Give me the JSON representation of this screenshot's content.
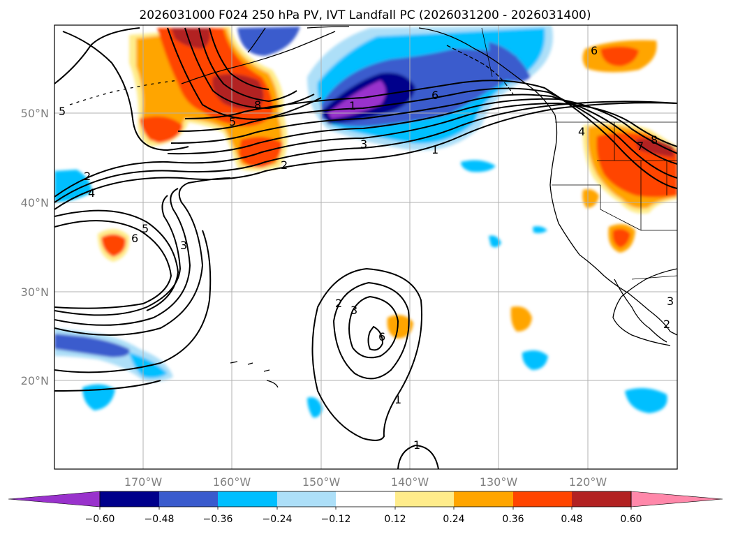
{
  "title": "2026031000 F024 250 hPa PV, IVT Landfall PC (2026031200 - 2026031400)",
  "lat_labels": [
    "50°N",
    "40°N",
    "30°N",
    "20°N"
  ],
  "lon_labels": [
    "170°W",
    "160°W",
    "150°W",
    "140°W",
    "130°W",
    "120°W"
  ],
  "colorbar": {
    "ticks": [
      "−0.60",
      "−0.48",
      "−0.36",
      "−0.24",
      "−0.12",
      "0.12",
      "0.24",
      "0.36",
      "0.48",
      "0.60"
    ],
    "colors": [
      "#9932CC",
      "#00008B",
      "#3A5BCD",
      "#00BFFF",
      "#ADDFF8",
      "#FFFFFF",
      "#FFEC8B",
      "#FFA500",
      "#FF4500",
      "#B22222",
      "#FF88AA"
    ]
  },
  "contour_labels": [
    "1",
    "2",
    "3",
    "4",
    "5",
    "6",
    "7",
    "8",
    "1",
    "2",
    "3",
    "5",
    "6",
    "8",
    "2",
    "3",
    "5",
    "6",
    "2",
    "3",
    "4",
    "1",
    "1",
    "6"
  ],
  "chart_data": {
    "type": "map",
    "title": "2026031000 F024 250 hPa PV, IVT Landfall PC (2026031200 - 2026031400)",
    "lat_range": [
      10,
      60
    ],
    "lon_range": [
      -180,
      -110
    ],
    "shading_levels": [
      -0.6,
      -0.48,
      -0.36,
      -0.24,
      -0.12,
      0.12,
      0.24,
      0.36,
      0.48,
      0.6
    ],
    "pv_contour_levels": [
      1,
      2,
      3,
      4,
      5,
      6,
      7,
      8
    ]
  }
}
